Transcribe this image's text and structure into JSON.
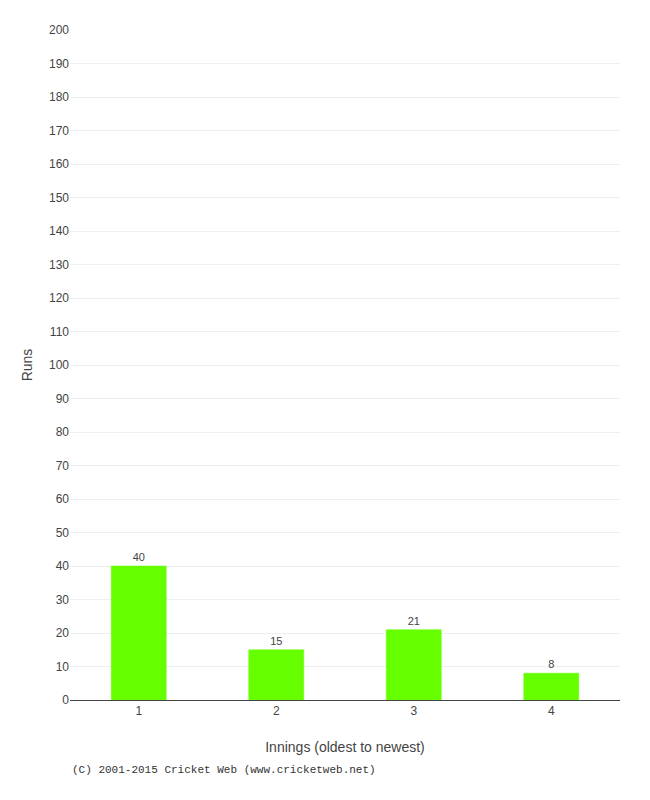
{
  "chart_data": {
    "type": "bar",
    "categories": [
      "1",
      "2",
      "3",
      "4"
    ],
    "values": [
      40,
      15,
      21,
      8
    ],
    "color": "#66ff00",
    "xlabel": "Innings (oldest to newest)",
    "ylabel": "Runs",
    "ylim": [
      0,
      200
    ],
    "yticks": [
      0,
      10,
      20,
      30,
      40,
      50,
      60,
      70,
      80,
      90,
      100,
      110,
      120,
      130,
      140,
      150,
      160,
      170,
      180,
      190,
      200
    ],
    "grid": true,
    "data_labels": true,
    "annotations": [
      "(C) 2001-2015 Cricket Web (www.cricketweb.net)"
    ]
  }
}
